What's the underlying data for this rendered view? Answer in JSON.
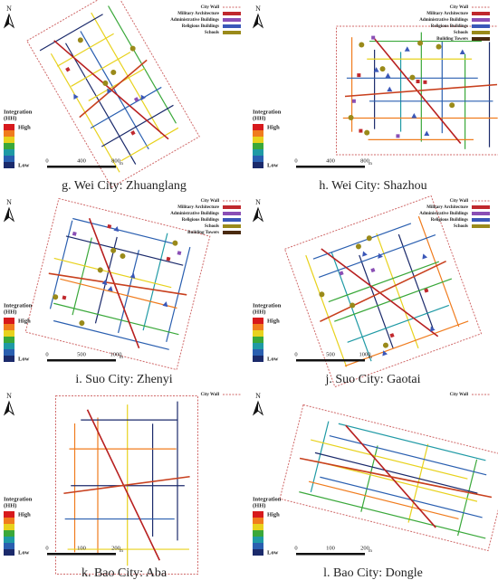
{
  "panels": [
    {
      "caption": "g. Wei City: Zhuanglang",
      "north": "N",
      "legend": [
        "City Wall",
        "Military Architecture",
        "Administrative Buildings",
        "Religious Buildings",
        "Schools"
      ],
      "integration": {
        "title": "Integration",
        "unit": "(HH)",
        "high": "High",
        "low": "Low"
      },
      "scale": {
        "ticks": [
          0,
          400,
          800
        ],
        "unit": "m"
      }
    },
    {
      "caption": "h. Wei City: Shazhou",
      "north": "N",
      "legend": [
        "City Wall",
        "Military Architecture",
        "Administrative Buildings",
        "Religious Buildings",
        "Schools",
        "Building Towers"
      ],
      "integration": {
        "title": "Integration",
        "unit": "(HH)",
        "high": "High",
        "low": "Low"
      },
      "scale": {
        "ticks": [
          0,
          400,
          800
        ],
        "unit": "m"
      }
    },
    {
      "caption": "i. Suo City: Zhenyi",
      "north": "N",
      "legend": [
        "City Wall",
        "Military Architecture",
        "Administrative Buildings",
        "Religious Buildings",
        "Schools",
        "Building Towers"
      ],
      "integration": {
        "title": "Integration",
        "unit": "(HH)",
        "high": "High",
        "low": "Low"
      },
      "scale": {
        "ticks": [
          0,
          500,
          1000
        ],
        "unit": "m"
      }
    },
    {
      "caption": "j. Suo City: Gaotai",
      "north": "N",
      "legend": [
        "City Wall",
        "Military Architecture",
        "Administrative Buildings",
        "Religious Buildings",
        "Schools"
      ],
      "integration": {
        "title": "Integration",
        "unit": "(HH)",
        "high": "High",
        "low": "Low"
      },
      "scale": {
        "ticks": [
          0,
          500,
          1000
        ],
        "unit": "m"
      }
    },
    {
      "caption": "k. Bao City: Aba",
      "north": "N",
      "legend": [
        "City Wall"
      ],
      "integration": {
        "title": "Integration",
        "unit": "(HH)",
        "high": "High",
        "low": "Low"
      },
      "scale": {
        "ticks": [
          0,
          100,
          200
        ],
        "unit": "m"
      }
    },
    {
      "caption": "l. Bao City: Dongle",
      "north": "N",
      "legend": [
        "City Wall"
      ],
      "integration": {
        "title": "Integration",
        "unit": "(HH)",
        "high": "High",
        "low": "Low"
      },
      "scale": {
        "ticks": [
          0,
          100,
          200
        ],
        "unit": "m"
      }
    }
  ]
}
